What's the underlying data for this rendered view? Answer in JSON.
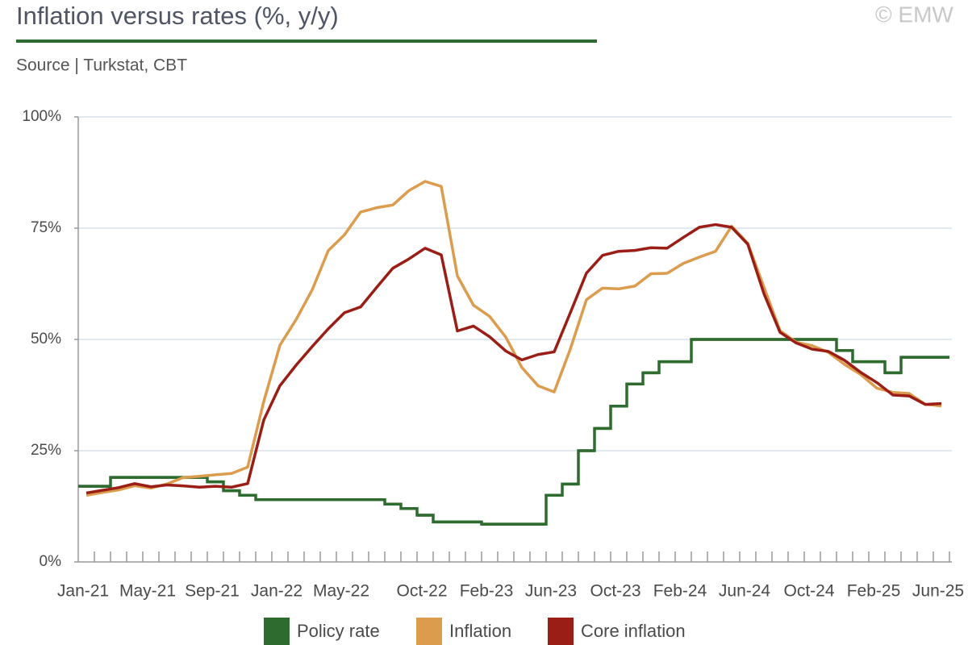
{
  "chart_data": {
    "type": "line",
    "title": "Inflation versus rates (%, y/y)",
    "subtitle": "Source | Turkstat, CBT",
    "credit": "© EMW",
    "categories": [
      "Jan-21",
      null,
      null,
      null,
      "May-21",
      null,
      null,
      null,
      "Sep-21",
      null,
      null,
      null,
      "Jan-22",
      null,
      null,
      null,
      "May-22",
      null,
      null,
      null,
      null,
      "Oct-22",
      null,
      null,
      null,
      "Feb-23",
      null,
      null,
      null,
      "Jun-23",
      null,
      null,
      null,
      "Oct-23",
      null,
      null,
      null,
      "Feb-24",
      null,
      null,
      null,
      "Jun-24",
      null,
      null,
      null,
      "Oct-24",
      null,
      null,
      null,
      "Feb-25",
      null,
      null,
      null,
      "Jun-25"
    ],
    "series": [
      {
        "name": "Policy rate",
        "color": "#2e6b2e",
        "step": true,
        "values": [
          17,
          17,
          19,
          19,
          19,
          19,
          19,
          19,
          18,
          16,
          15,
          14,
          14,
          14,
          14,
          14,
          14,
          14,
          14,
          13,
          12,
          10.5,
          9,
          9,
          9,
          8.5,
          8.5,
          8.5,
          8.5,
          15,
          17.5,
          25,
          30,
          35,
          40,
          42.5,
          45,
          45,
          50,
          50,
          50,
          50,
          50,
          50,
          50,
          50,
          50,
          47.5,
          45,
          45,
          42.5,
          46,
          46,
          46
        ]
      },
      {
        "name": "Inflation",
        "color": "#dc9c4e",
        "values": [
          14.97,
          15.61,
          16.19,
          17.14,
          16.59,
          17.53,
          18.95,
          19.25,
          19.58,
          19.89,
          21.31,
          36.08,
          48.69,
          54.44,
          61.14,
          69.97,
          73.5,
          78.62,
          79.6,
          80.21,
          83.45,
          85.51,
          84.39,
          64.27,
          57.68,
          55.18,
          50.51,
          43.68,
          39.59,
          38.21,
          47.83,
          58.94,
          61.53,
          61.36,
          61.98,
          64.77,
          64.86,
          67.07,
          68.5,
          69.8,
          75.45,
          71.6,
          61.78,
          51.97,
          49.38,
          48.58,
          47.09,
          44.38,
          42.12,
          39.05,
          38.1,
          37.86,
          35.41,
          35.05
        ]
      },
      {
        "name": "Core inflation",
        "color": "#9a1e16",
        "values": [
          15.5,
          16.1,
          16.7,
          17.6,
          16.9,
          17.3,
          17.1,
          16.8,
          17,
          16.8,
          17.6,
          31.9,
          39.6,
          44.2,
          48.4,
          52.4,
          56,
          57.3,
          61.7,
          66,
          68.1,
          70.5,
          69,
          51.9,
          53,
          50.6,
          47.4,
          45.4,
          46.6,
          47.2,
          56,
          64.9,
          68.9,
          69.8,
          70,
          70.6,
          70.5,
          72.9,
          75.2,
          75.8,
          75.2,
          71.4,
          60.3,
          51.6,
          49.2,
          47.8,
          47.3,
          45.3,
          42.6,
          40.3,
          37.5,
          37.3,
          35.4,
          35.6
        ]
      }
    ],
    "ylim": [
      0,
      100
    ],
    "yticks": [
      {
        "value": 0,
        "label": "0%"
      },
      {
        "value": 25,
        "label": "25%"
      },
      {
        "value": 50,
        "label": "50%"
      },
      {
        "value": 75,
        "label": "75%"
      },
      {
        "value": 100,
        "label": "100%"
      }
    ],
    "grid": true,
    "legend": "bottom"
  }
}
